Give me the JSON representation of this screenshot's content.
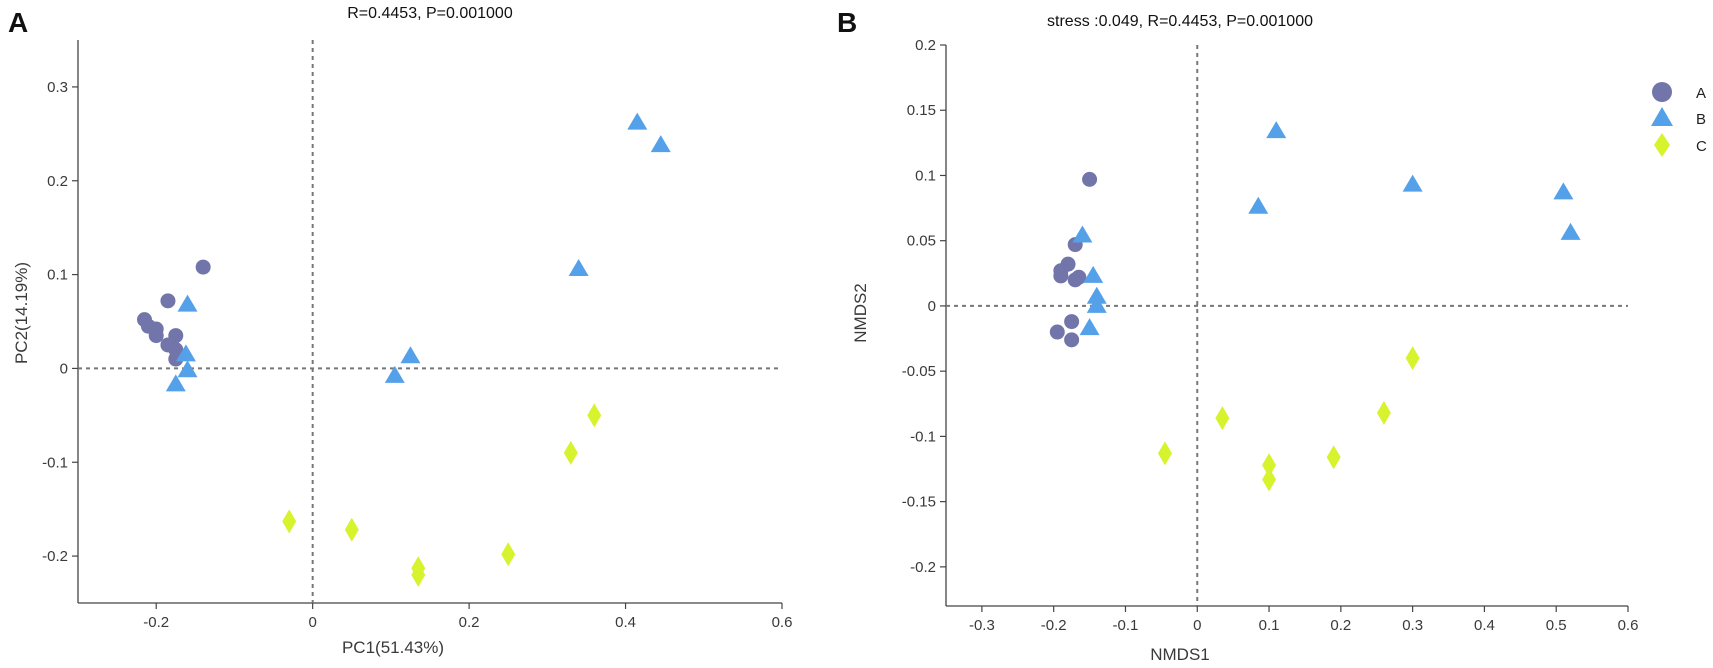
{
  "colors": {
    "A": "#7275A9",
    "B": "#54A1EA",
    "C": "#D7F32E",
    "axis": "#444444",
    "zero_line": "#777777"
  },
  "chart_data": [
    {
      "id": "pca",
      "type": "scatter",
      "panel_label": "A",
      "title": "R=0.4453, P=0.001000",
      "xlabel": "PC1(51.43%)",
      "ylabel": "PC2(14.19%)",
      "xlim": [
        -0.3,
        0.6
      ],
      "ylim": [
        -0.25,
        0.35
      ],
      "xticks": [
        -0.2,
        0,
        0.2,
        0.4,
        0.6
      ],
      "xtick_labels": [
        "-0.2",
        "0",
        "0.2",
        "0.4",
        "0.6"
      ],
      "yticks": [
        -0.2,
        -0.1,
        0,
        0.1,
        0.2,
        0.3
      ],
      "ytick_labels": [
        "-0.2",
        "-0.1",
        "0",
        "0.1",
        "0.2",
        "0.3"
      ],
      "grid": false,
      "zero_lines": true,
      "series": [
        {
          "name": "A",
          "marker": "circle",
          "points": [
            [
              -0.14,
              0.108
            ],
            [
              -0.185,
              0.072
            ],
            [
              -0.215,
              0.052
            ],
            [
              -0.21,
              0.045
            ],
            [
              -0.2,
              0.042
            ],
            [
              -0.2,
              0.035
            ],
            [
              -0.175,
              0.035
            ],
            [
              -0.185,
              0.025
            ],
            [
              -0.18,
              0.025
            ],
            [
              -0.175,
              0.02
            ],
            [
              -0.175,
              0.01
            ]
          ]
        },
        {
          "name": "B",
          "marker": "triangle",
          "points": [
            [
              0.415,
              0.262
            ],
            [
              0.445,
              0.238
            ],
            [
              0.34,
              0.106
            ],
            [
              -0.16,
              0.068
            ],
            [
              0.125,
              0.013
            ],
            [
              -0.162,
              0.015
            ],
            [
              0.105,
              -0.008
            ],
            [
              -0.16,
              -0.002
            ],
            [
              -0.175,
              -0.017
            ]
          ]
        },
        {
          "name": "C",
          "marker": "diamond",
          "points": [
            [
              0.36,
              -0.05
            ],
            [
              0.33,
              -0.09
            ],
            [
              -0.03,
              -0.163
            ],
            [
              0.05,
              -0.172
            ],
            [
              0.25,
              -0.198
            ],
            [
              0.135,
              -0.213
            ],
            [
              0.135,
              -0.22
            ]
          ]
        }
      ]
    },
    {
      "id": "nmds",
      "type": "scatter",
      "panel_label": "B",
      "title": "stress :0.049, R=0.4453, P=0.001000",
      "xlabel": "NMDS1",
      "ylabel": "NMDS2",
      "xlim": [
        -0.35,
        0.6
      ],
      "ylim": [
        -0.23,
        0.2
      ],
      "xticks": [
        -0.3,
        -0.2,
        -0.1,
        0,
        0.1,
        0.2,
        0.3,
        0.4,
        0.5,
        0.6
      ],
      "xtick_labels": [
        "-0.3",
        "-0.2",
        "-0.1",
        "0",
        "0.1",
        "0.2",
        "0.3",
        "0.4",
        "0.5",
        "0.6"
      ],
      "yticks": [
        -0.2,
        -0.15,
        -0.1,
        -0.05,
        0,
        0.05,
        0.1,
        0.15,
        0.2
      ],
      "ytick_labels": [
        "-0.2",
        "-0.15",
        "-0.1",
        "-0.05",
        "0",
        "0.05",
        "0.1",
        "0.15",
        "0.2"
      ],
      "grid": false,
      "zero_lines": true,
      "legend": {
        "placement": "top-right",
        "labels": [
          "A",
          "B",
          "C"
        ]
      },
      "series": [
        {
          "name": "A",
          "marker": "circle",
          "points": [
            [
              -0.15,
              0.097
            ],
            [
              -0.17,
              0.047
            ],
            [
              -0.18,
              0.032
            ],
            [
              -0.19,
              0.027
            ],
            [
              -0.19,
              0.023
            ],
            [
              -0.17,
              0.02
            ],
            [
              -0.165,
              0.022
            ],
            [
              -0.175,
              -0.012
            ],
            [
              -0.195,
              -0.02
            ],
            [
              -0.175,
              -0.026
            ]
          ]
        },
        {
          "name": "B",
          "marker": "triangle",
          "points": [
            [
              0.11,
              0.134
            ],
            [
              0.3,
              0.093
            ],
            [
              0.51,
              0.087
            ],
            [
              0.085,
              0.076
            ],
            [
              0.52,
              0.056
            ],
            [
              -0.16,
              0.054
            ],
            [
              -0.145,
              0.023
            ],
            [
              -0.14,
              0.007
            ],
            [
              -0.14,
              0.0
            ],
            [
              -0.15,
              -0.017
            ]
          ]
        },
        {
          "name": "C",
          "marker": "diamond",
          "points": [
            [
              0.3,
              -0.04
            ],
            [
              0.26,
              -0.082
            ],
            [
              0.035,
              -0.086
            ],
            [
              -0.045,
              -0.113
            ],
            [
              0.19,
              -0.116
            ],
            [
              0.1,
              -0.122
            ],
            [
              0.1,
              -0.133
            ]
          ]
        }
      ]
    }
  ]
}
